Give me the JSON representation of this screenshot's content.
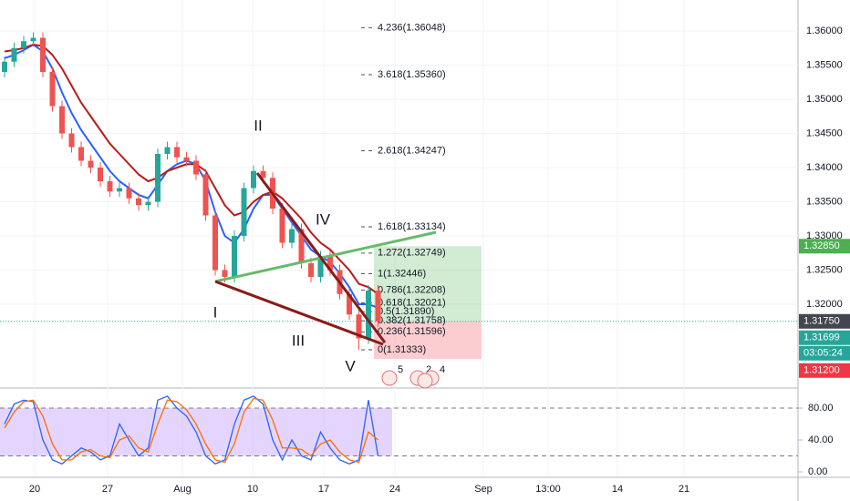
{
  "chart_data": {
    "type": "candlestick",
    "up_color": "#26a69a",
    "down_color": "#ef5350",
    "ylim": [
      1.30787,
      1.36453
    ],
    "yticks": [
      {
        "value": 1.36,
        "label": "1.36000"
      },
      {
        "value": 1.355,
        "label": "1.35500"
      },
      {
        "value": 1.35,
        "label": "1.35000"
      },
      {
        "value": 1.345,
        "label": "1.34500"
      },
      {
        "value": 1.34,
        "label": "1.34000"
      },
      {
        "value": 1.335,
        "label": "1.33500"
      },
      {
        "value": 1.33,
        "label": "1.33000"
      },
      {
        "value": 1.325,
        "label": "1.32500"
      },
      {
        "value": 1.32,
        "label": "1.32000"
      }
    ],
    "time_labels": [
      "20",
      "27",
      "Aug",
      "10",
      "17",
      "24",
      "Sep",
      "13:00",
      "14",
      "21"
    ],
    "candles": [
      [
        1.354,
        1.3563,
        1.3532,
        1.3555
      ],
      [
        1.3555,
        1.3583,
        1.3547,
        1.3575
      ],
      [
        1.3575,
        1.3593,
        1.3567,
        1.3585
      ],
      [
        1.3585,
        1.3598,
        1.3577,
        1.359
      ],
      [
        1.359,
        1.3598,
        1.3532,
        1.354
      ],
      [
        1.354,
        1.3548,
        1.3482,
        1.349
      ],
      [
        1.349,
        1.3498,
        1.3442,
        1.345
      ],
      [
        1.345,
        1.3458,
        1.3422,
        1.343
      ],
      [
        1.343,
        1.3438,
        1.3402,
        1.341
      ],
      [
        1.341,
        1.3418,
        1.3392,
        1.34
      ],
      [
        1.34,
        1.3408,
        1.3372,
        1.338
      ],
      [
        1.338,
        1.3388,
        1.3357,
        1.3365
      ],
      [
        1.3365,
        1.3378,
        1.3357,
        1.337
      ],
      [
        1.337,
        1.3378,
        1.3347,
        1.3355
      ],
      [
        1.3355,
        1.3363,
        1.3337,
        1.3345
      ],
      [
        1.3345,
        1.3358,
        1.3337,
        1.335
      ],
      [
        1.335,
        1.3428,
        1.3342,
        1.342
      ],
      [
        1.342,
        1.3438,
        1.3412,
        1.343
      ],
      [
        1.343,
        1.3438,
        1.3407,
        1.3415
      ],
      [
        1.3415,
        1.3423,
        1.3402,
        1.341
      ],
      [
        1.341,
        1.3418,
        1.3382,
        1.339
      ],
      [
        1.339,
        1.3398,
        1.3322,
        1.333
      ],
      [
        1.333,
        1.3338,
        1.3242,
        1.325
      ],
      [
        1.325,
        1.3258,
        1.3232,
        1.324
      ],
      [
        1.324,
        1.3308,
        1.3232,
        1.33
      ],
      [
        1.33,
        1.3378,
        1.3292,
        1.337
      ],
      [
        1.337,
        1.3403,
        1.3362,
        1.3395
      ],
      [
        1.3395,
        1.3403,
        1.3377,
        1.3385
      ],
      [
        1.3385,
        1.3393,
        1.3332,
        1.334
      ],
      [
        1.334,
        1.3348,
        1.3282,
        1.329
      ],
      [
        1.329,
        1.3318,
        1.3282,
        1.331
      ],
      [
        1.331,
        1.3318,
        1.3252,
        1.326
      ],
      [
        1.326,
        1.3268,
        1.3232,
        1.324
      ],
      [
        1.324,
        1.3278,
        1.3232,
        1.327
      ],
      [
        1.327,
        1.3278,
        1.3242,
        1.325
      ],
      [
        1.325,
        1.3258,
        1.3207,
        1.3215
      ],
      [
        1.3215,
        1.3223,
        1.3177,
        1.3185
      ],
      [
        1.3185,
        1.3193,
        1.3133,
        1.315
      ],
      [
        1.315,
        1.3228,
        1.3142,
        1.322
      ],
      [
        1.322,
        1.3228,
        1.3167,
        1.3175
      ]
    ],
    "moving_averages": [
      {
        "color": "#2962ff",
        "values": [
          1.356,
          1.3565,
          1.3572,
          1.358,
          1.357,
          1.3545,
          1.351,
          1.348,
          1.3455,
          1.3435,
          1.3415,
          1.3395,
          1.338,
          1.337,
          1.336,
          1.3355,
          1.3375,
          1.3395,
          1.3405,
          1.341,
          1.3405,
          1.338,
          1.3335,
          1.33,
          1.329,
          1.331,
          1.334,
          1.336,
          1.336,
          1.334,
          1.332,
          1.33,
          1.328,
          1.327,
          1.3262,
          1.3245,
          1.3225,
          1.32,
          1.32,
          1.3195
        ]
      },
      {
        "color": "#b71c1c",
        "values": [
          1.357,
          1.3572,
          1.3575,
          1.358,
          1.3578,
          1.3565,
          1.3545,
          1.352,
          1.3495,
          1.3475,
          1.3455,
          1.3435,
          1.342,
          1.3405,
          1.339,
          1.338,
          1.3385,
          1.3395,
          1.34,
          1.3405,
          1.3405,
          1.3395,
          1.337,
          1.3345,
          1.333,
          1.3335,
          1.335,
          1.336,
          1.3365,
          1.3355,
          1.334,
          1.3325,
          1.3305,
          1.329,
          1.328,
          1.3265,
          1.325,
          1.323,
          1.3225,
          1.3215
        ]
      }
    ],
    "fib_levels": [
      {
        "value": 1.36048,
        "label": "4.236(1.36048)"
      },
      {
        "value": 1.3536,
        "label": "3.618(1.35360)"
      },
      {
        "value": 1.34247,
        "label": "2.618(1.34247)"
      },
      {
        "value": 1.33134,
        "label": "1.618(1.33134)"
      },
      {
        "value": 1.32749,
        "label": "1.272(1.32749)"
      },
      {
        "value": 1.32446,
        "label": "1(1.32446)"
      },
      {
        "value": 1.32208,
        "label": "0.786(1.32208)"
      },
      {
        "value": 1.32021,
        "label": "0.618(1.32021)"
      },
      {
        "value": 1.3189,
        "label": "0.5(1.31890)"
      },
      {
        "value": 1.31758,
        "label": "0.382(1.31758)"
      },
      {
        "value": 1.31596,
        "label": "0.236(1.31596)"
      },
      {
        "value": 1.31333,
        "label": "0(1.31333)"
      }
    ],
    "position": {
      "entry": 1.3175,
      "target": 1.3285,
      "stop": 1.312
    },
    "price_tags": [
      {
        "value": 1.3285,
        "label": "1.32850",
        "color": "#4caf50"
      },
      {
        "value": 1.3175,
        "label": "1.31750",
        "color": "#434651"
      },
      {
        "value": 1.31699,
        "label": "1.31699",
        "color": "#26a69a"
      },
      {
        "value": 1.312,
        "label": "1.31200",
        "color": "#f23645"
      }
    ],
    "countdown": "03:05:24",
    "wave_labels": [
      "I",
      "II",
      "III",
      "IV",
      "V"
    ],
    "event_counts": [
      "5",
      "2",
      "4"
    ],
    "oscillator": {
      "ylim": [
        -5.7,
        102.9
      ],
      "yticks": [
        {
          "value": 80,
          "label": "80.00"
        },
        {
          "value": 40,
          "label": "40.00"
        },
        {
          "value": 0,
          "label": "0.00"
        }
      ],
      "band": [
        20,
        80
      ],
      "series": [
        {
          "color": "#2962ff",
          "values": [
            60,
            85,
            90,
            88,
            40,
            15,
            10,
            20,
            30,
            25,
            15,
            20,
            60,
            40,
            20,
            30,
            90,
            95,
            80,
            70,
            50,
            20,
            10,
            15,
            60,
            90,
            95,
            85,
            40,
            15,
            40,
            20,
            15,
            50,
            30,
            15,
            10,
            15,
            90,
            20
          ]
        },
        {
          "color": "#ff6d00",
          "values": [
            55,
            75,
            88,
            90,
            70,
            35,
            15,
            15,
            25,
            28,
            20,
            18,
            40,
            45,
            30,
            25,
            60,
            90,
            88,
            78,
            60,
            35,
            15,
            12,
            35,
            75,
            92,
            90,
            65,
            30,
            30,
            28,
            20,
            35,
            40,
            25,
            15,
            12,
            50,
            40
          ]
        }
      ]
    }
  }
}
